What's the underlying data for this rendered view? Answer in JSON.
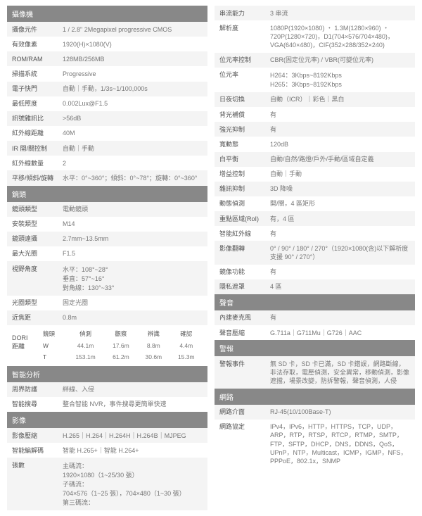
{
  "colors": {
    "headerBg": "#888",
    "headerFg": "#fff",
    "rowBg": "#f4f4f4",
    "rowAltBg": "#fff",
    "labelColor": "#555",
    "valueColor": "#777"
  },
  "left": {
    "camera": {
      "title": "攝像機",
      "sensor_l": "攝像元件",
      "sensor_v": "1 / 2.8\" 2Megapixel progressive CMOS",
      "pixels_l": "有效像素",
      "pixels_v": "1920(H)×1080(V)",
      "rom_l": "ROM/RAM",
      "rom_v": "128MB/256MB",
      "scan_l": "掃描系統",
      "scan_v": "Progressive",
      "shutter_l": "電子快門",
      "shutter_v": "自動｜手動，1/3s~1/100,000s",
      "minillum_l": "最低照度",
      "minillum_v": "0.002Lux@F1.5",
      "snr_l": "訊號雜訊比",
      "snr_v": ">56dB",
      "ir_l": "紅外線距離",
      "ir_v": "40M",
      "irctrl_l": "IR 開/關控制",
      "irctrl_v": "自動｜手動",
      "irnum_l": "紅外線數量",
      "irnum_v": "2",
      "ptrange_l": "平移/傾斜/旋轉",
      "ptrange_v": "水平：0°~360°；傾斜：0°~78°；旋轉：0°~360°"
    },
    "lens": {
      "title": "鏡頭",
      "type_l": "鏡頭類型",
      "type_v": "電動鏡頭",
      "mount_l": "安裝類型",
      "mount_v": "M14",
      "focal_l": "鏡頭遠攝",
      "focal_v": "2.7mm~13.5mm",
      "aperture_l": "最大光圈",
      "aperture_v": "F1.5",
      "fov_l": "視野角度",
      "fov_v1": "水平：108°~28°",
      "fov_v2": "垂直：57°~16°",
      "fov_v3": "對角線：130°~33°",
      "iris_l": "光圈類型",
      "iris_v": "固定光圈",
      "close_l": "近焦距",
      "close_v": "0.8m"
    },
    "dori": {
      "left_label": "DORI\n距離",
      "headers": [
        "鏡頭",
        "偵測",
        "觀察",
        "辨識",
        "確認"
      ],
      "rows": [
        [
          "W",
          "44.1m",
          "17.6m",
          "8.8m",
          "4.4m"
        ],
        [
          "T",
          "153.1m",
          "61.2m",
          "30.6m",
          "15.3m"
        ]
      ]
    },
    "ia": {
      "title": "智能分析",
      "ivs_l": "周界防護",
      "ivs_v": "絆線、入侵",
      "search_l": "智能搜尋",
      "search_v": "整合智能 NVR，事件搜尋更簡單快速"
    },
    "video": {
      "title": "影像",
      "codec_l": "影像壓縮",
      "codec_v": "H.265｜H.264｜H.264H｜H.264B｜MJPEG",
      "smart_l": "智能編解碼",
      "smart_v": "智能 H.265+｜智能 H.264+",
      "streams_l": "張數",
      "main_h": "主碼流：",
      "main_v": "1920×1080（1~25/30 張）",
      "sub_h": "子碼流：",
      "sub_v": "704×576（1~25 張），704×480（1~30 張）",
      "third_h": "第三碼流："
    }
  },
  "right": {
    "stream": {
      "cap_l": "串流能力",
      "cap_v": "3 串流",
      "res_l": "解析度",
      "res_v": "1080P(1920×1080) ・ 1.3M(1280×960) ・ 720P(1280×720)，D1(704×576/704×480)，VGA(640×480)，CIF(352×288/352×240)",
      "ratectrl_l": "位元率控制",
      "ratectrl_v": "CBR(固定位元率) / VBR(可變位元率)",
      "bitrate_l": "位元率",
      "bitrate_v1": "H264：3Kbps~8192Kbps",
      "bitrate_v2": "H265：3Kbps~8192Kbps",
      "daynight_l": "日夜切換",
      "daynight_v": "自動（ICR）｜彩色｜黑白",
      "blc_l": "背光補償",
      "blc_v": "有",
      "hlc_l": "強光抑制",
      "hlc_v": "有",
      "wdr_l": "寬動態",
      "wdr_v": "120dB",
      "wb_l": "白平衡",
      "wb_v": "自動/自然/路燈/戶外/手動/區域自定義",
      "agc_l": "增益控制",
      "agc_v": "自動｜手動",
      "nr_l": "雜訊抑制",
      "nr_v": "3D 降噪",
      "motion_l": "動態偵測",
      "motion_v": "開/關，4 區矩形",
      "roi_l": "重點區域(RoI)",
      "roi_v": "有，4 區",
      "smartir_l": "智能紅外線",
      "smartir_v": "有",
      "flip_l": "影像翻轉",
      "flip_v": "0° / 90° / 180° / 270°（1920×1080(含)以下解析度支援 90° / 270°）",
      "mirror_l": "鏡像功能",
      "mirror_v": "有",
      "privacy_l": "隱私遮罩",
      "privacy_v": "4 區"
    },
    "audio": {
      "title": "聲音",
      "mic_l": "內建麥克風",
      "mic_v": "有",
      "acodec_l": "聲音壓縮",
      "acodec_v": "G.711a｜G711Mu｜G726｜AAC"
    },
    "alarm": {
      "title": "警報",
      "events_l": "警報事件",
      "events_v": "無 SD 卡，SD 卡已滿，SD 卡錯誤，網路斷線，非法存取，電壓偵測，安全異常，移動偵測，影像遮擋，場景改變，防拆警報，聲音偵測，人侵"
    },
    "network": {
      "title": "網路",
      "iface_l": "網路介面",
      "iface_v": "RJ-45(10/100Base-T)",
      "proto_l": "網路協定",
      "proto_v": "IPv4，IPv6，HTTP，HTTPS，TCP，UDP，ARP，RTP，RTSP，RTCP，RTMP，SMTP，FTP，SFTP，DHCP，DNS，DDNS，QoS，UPnP，NTP，Multicast，ICMP，IGMP，NFS，PPPoE，802.1x，SNMP"
    }
  }
}
